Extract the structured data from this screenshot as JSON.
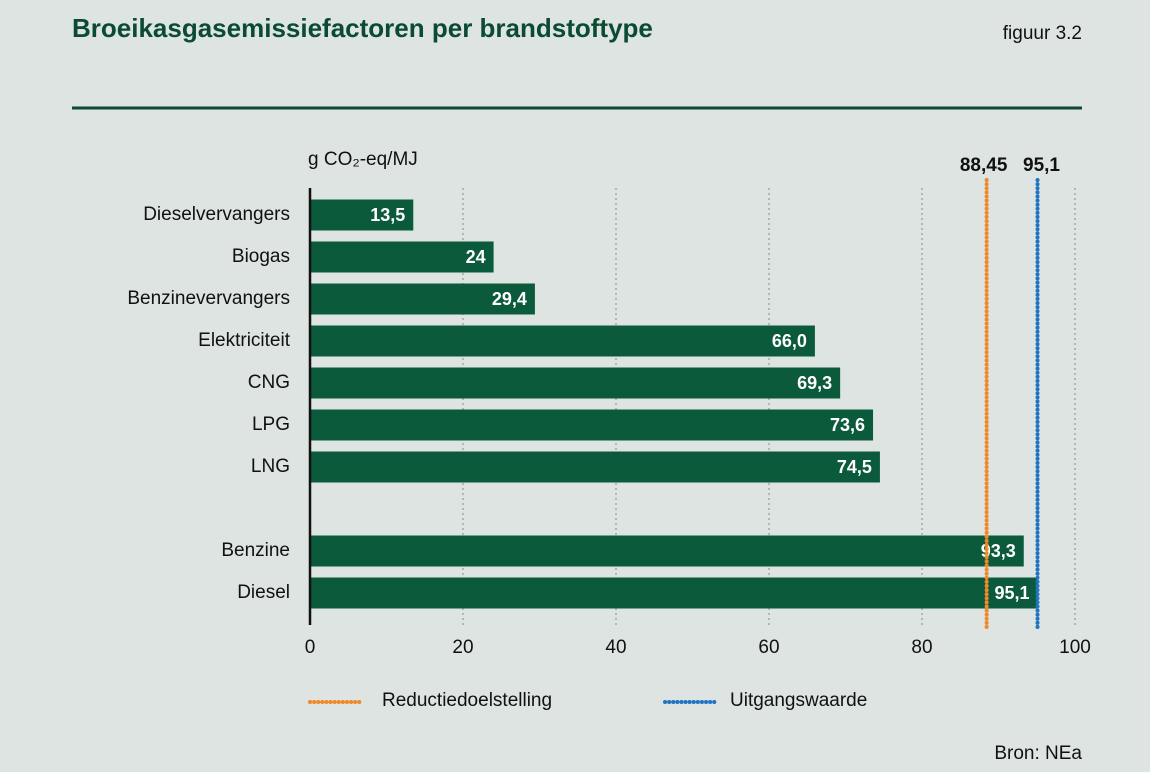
{
  "chart_data": {
    "type": "bar",
    "orientation": "horizontal",
    "title": "Broeikasgasemissiefactoren per brandstoftype",
    "figure_label": "figuur 3.2",
    "source": "Bron: NEa",
    "xlabel": "g CO₂-eq/MJ",
    "categories": [
      "Dieselvervangers",
      "Biogas",
      "Benzinevervangers",
      "Elektriciteit",
      "CNG",
      "LPG",
      "LNG",
      null,
      "Benzine",
      "Diesel"
    ],
    "values": [
      13.5,
      24,
      29.4,
      66.0,
      69.3,
      73.6,
      74.5,
      null,
      93.3,
      95.1
    ],
    "value_labels": [
      "13,5",
      "24",
      "29,4",
      "66,0",
      "69,3",
      "73,6",
      "74,5",
      null,
      "93,3",
      "95,1"
    ],
    "color": "#0b5a3c",
    "xlim": [
      0,
      100
    ],
    "xticks": [
      0,
      20,
      40,
      60,
      80,
      100
    ],
    "grid": true,
    "reference_lines": [
      {
        "name": "Reductiedoelstelling",
        "value": 88.45,
        "label": "88,45",
        "color": "#f0892a"
      },
      {
        "name": "Uitgangswaarde",
        "value": 95.1,
        "label": "95,1",
        "color": "#1f74c4"
      }
    ]
  }
}
